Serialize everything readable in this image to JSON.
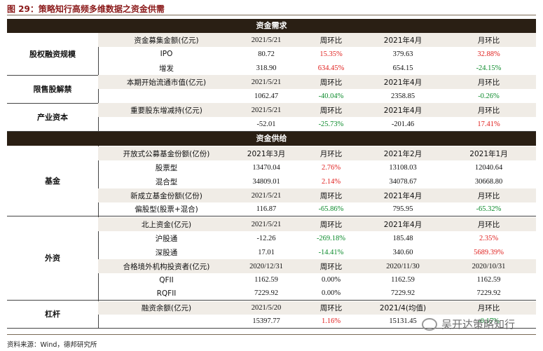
{
  "caption": "图 29：策略知行高频多维数据之资金供需",
  "demand_title": "资金需求",
  "supply_title": "资金供给",
  "source": "资料来源：Wind，德邦研究所",
  "watermark": "吴开达策略知行",
  "groups": {
    "equity": "股权融资规模",
    "lockup": "限售股解禁",
    "industry": "产业资本",
    "fund": "基金",
    "foreign": "外资",
    "leverage": "杠杆"
  },
  "rows": {
    "eq_h": [
      "资金募集金额(亿元)",
      "2021/5/21",
      "周环比",
      "2021年4月",
      "月环比"
    ],
    "eq_1": [
      "IPO",
      "80.72",
      "15.35%",
      "379.63",
      "32.88%"
    ],
    "eq_2": [
      "增发",
      "318.90",
      "634.45%",
      "654.15",
      "-24.15%"
    ],
    "lk_h": [
      "本期开始流通市值(亿元)",
      "2021/5/21",
      "周环比",
      "2021年4月",
      "月环比"
    ],
    "lk_1": [
      "",
      "1062.47",
      "-40.04%",
      "2358.85",
      "-0.26%"
    ],
    "in_h": [
      "重要股东增减持(亿元)",
      "2021/5/21",
      "周环比",
      "2021年4月",
      "月环比"
    ],
    "in_1": [
      "",
      "-52.01",
      "-25.73%",
      "-201.46",
      "17.41%"
    ],
    "fd_h1": [
      "开放式公募基金份额(亿份)",
      "2021年3月",
      "月环比",
      "2021年2月",
      "2021年1月"
    ],
    "fd_1": [
      "股票型",
      "13470.04",
      "2.76%",
      "13108.03",
      "12040.64"
    ],
    "fd_2": [
      "混合型",
      "34809.01",
      "2.14%",
      "34078.67",
      "30668.80"
    ],
    "fd_h2": [
      "新成立基金份额(亿份)",
      "2021/5/21",
      "周环比",
      "2021年4月",
      "月环比"
    ],
    "fd_3": [
      "偏股型(股票+混合)",
      "116.87",
      "-65.86%",
      "795.95",
      "-65.32%"
    ],
    "fr_h1": [
      "北上资金(亿元)",
      "2021/5/21",
      "周环比",
      "2021年4月",
      "月环比"
    ],
    "fr_1": [
      "沪股通",
      "-12.26",
      "-269.18%",
      "185.48",
      "2.35%"
    ],
    "fr_2": [
      "深股通",
      "17.01",
      "-14.41%",
      "340.60",
      "5689.39%"
    ],
    "fr_h2": [
      "合格境外机构投资者(亿元)",
      "2020/12/31",
      "周环比",
      "2020/11/30",
      "2020/10/31"
    ],
    "fr_3": [
      "QFII",
      "1162.59",
      "0.00%",
      "1162.59",
      "1162.59"
    ],
    "fr_4": [
      "RQFII",
      "7229.92",
      "0.00%",
      "7229.92",
      "7229.92"
    ],
    "lv_h": [
      "融资余额(亿元)",
      "2021/5/20",
      "周环比",
      "2021/4(均值)",
      "月环比"
    ],
    "lv_1": [
      "",
      "15397.77",
      "1.16%",
      "15131.45",
      "-0.17%"
    ]
  },
  "colors": {
    "positive": "#e0201e",
    "negative": "#0a8a2a",
    "band": "#2a1f14",
    "caption": "#8b1a1a"
  }
}
